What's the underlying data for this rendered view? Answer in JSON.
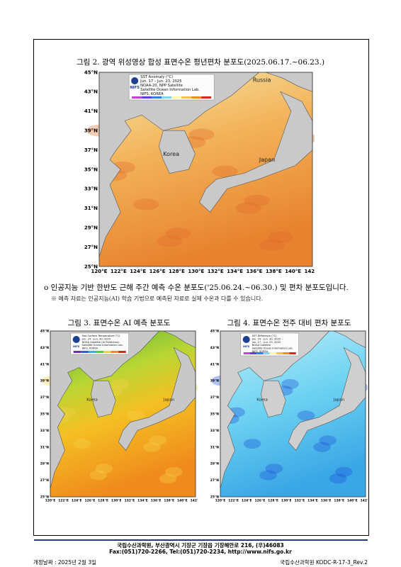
{
  "figure2": {
    "title": "그림 2. 광역 위성영상 합성 표면수온 평년편차 분포도(2025.06.17.~06.23.)",
    "map": {
      "legend": [
        "SST Anomaly (°C)",
        "Jun. 17 – Jun. 23, 2025",
        "NOAA-20, NPP Satellite",
        "Satellite Ocean Information Lab.",
        "NIFS, KOREA"
      ],
      "logo": "NIFS",
      "places": [
        "Russia",
        "Korea",
        "Japan"
      ],
      "lat_labels": [
        "45°N",
        "43°N",
        "41°N",
        "39°N",
        "37°N",
        "35°N",
        "33°N",
        "31°N",
        "29°N",
        "27°N",
        "25°N"
      ],
      "lon_labels": [
        "120°E",
        "122°E",
        "124°E",
        "126°E",
        "128°E",
        "130°E",
        "132°E",
        "134°E",
        "136°E",
        "138°E",
        "140°E",
        "142°E"
      ]
    }
  },
  "body": {
    "bullet": "o 인공지능 기반 한반도 근해 주간 예측 수온 분포도('25.06.24.~06.30.) 및 편차 분포도입니다.",
    "note": "※ 예측 자료는 인공지능(AI) 학습 기법으로 예측된 자료로 실제 수온과 다를 수 있습니다."
  },
  "figure3": {
    "title": "그림 3. 표면수온 AI 예측 분포도",
    "map": {
      "legend": [
        "Sea Surface Temperature (°C)",
        "Jun. 24 – Jun. 30, 2025",
        "NOAA Satellite (AI Prediction)",
        "Satellite Ocean Information Lab.",
        "NIFS, KOREA"
      ],
      "logo": "NIFS",
      "places": [
        "Korea",
        "Japan"
      ],
      "lat_labels": [
        "45°N",
        "43°N",
        "41°N",
        "39°N",
        "37°N",
        "35°N",
        "33°N",
        "31°N",
        "29°N",
        "27°N",
        "25°N"
      ],
      "lon_labels": [
        "120°E",
        "122°E",
        "124°E",
        "126°E",
        "128°E",
        "130°E",
        "132°E",
        "134°E",
        "136°E",
        "138°E",
        "140°E",
        "142°E"
      ]
    }
  },
  "figure4": {
    "title": "그림 4. 표면수온 전주 대비 편차 분포도",
    "map": {
      "legend": [
        "SST Difference (°C)",
        "Jun. 24 – Jun. 30, 2025 –",
        "Jun. 17 – Jun. 23, 2025",
        "NOAA Satellite",
        "Satellite Ocean Information Lab.",
        "NIFS, KOREA"
      ],
      "logo": "NIFS",
      "places": [
        "Korea",
        "Japan"
      ],
      "lat_labels": [
        "45°N",
        "43°N",
        "41°N",
        "39°N",
        "37°N",
        "35°N",
        "33°N",
        "31°N",
        "29°N",
        "27°N",
        "25°N"
      ],
      "lon_labels": [
        "120°E",
        "122°E",
        "124°E",
        "126°E",
        "128°E",
        "130°E",
        "132°E",
        "134°E",
        "136°E",
        "138°E",
        "140°E",
        "142°E"
      ]
    }
  },
  "footer": {
    "address": "국립수산과학원, 부산광역시 기장군 기장읍 기장해안로 216, (우)46083",
    "contact": "Fax:(051)720-2266, Tel:(051)720-2234, http://www.nifs.go.kr",
    "revision_date": "개정날짜 : 2025년 2월 3일",
    "document_code": "국립수산과학원 KODC-R-17-3_Rev.2"
  }
}
